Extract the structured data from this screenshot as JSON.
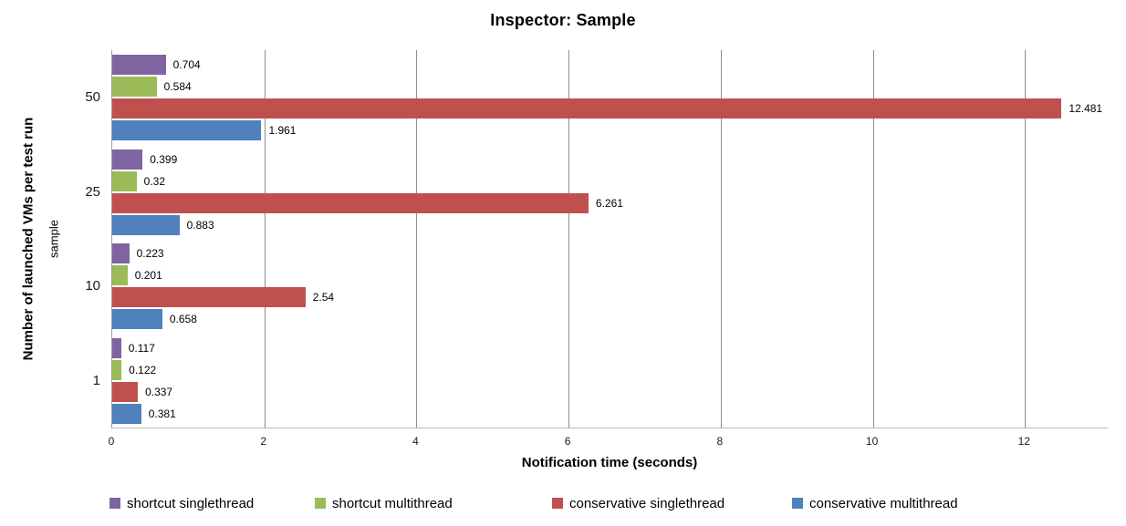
{
  "title": "Inspector: Sample",
  "chart_data": {
    "type": "bar",
    "orientation": "horizontal",
    "title": "Inspector: Sample",
    "xlabel": "Notification time (seconds)",
    "ylabel": "Number of launched VMs per test run",
    "ylabel_inner": "sample",
    "categories": [
      "50",
      "25",
      "10",
      "1"
    ],
    "series": [
      {
        "name": "shortcut singlethread",
        "color": "#8064A2",
        "values": [
          0.704,
          0.399,
          0.223,
          0.117
        ],
        "labels": [
          "0.704",
          "0.399",
          "0.223",
          "0.117"
        ]
      },
      {
        "name": "shortcut multithread",
        "color": "#9BBB59",
        "values": [
          0.584,
          0.32,
          0.201,
          0.122
        ],
        "labels": [
          "0.584",
          "0.32",
          "0.201",
          "0.122"
        ]
      },
      {
        "name": "conservative singlethread",
        "color": "#C0504D",
        "values": [
          12.481,
          6.261,
          2.54,
          0.337
        ],
        "labels": [
          "12.481",
          "6.261",
          "2.54",
          "0.337"
        ]
      },
      {
        "name": "conservative multithread",
        "color": "#4F81BD",
        "values": [
          1.961,
          0.883,
          0.658,
          0.381
        ],
        "labels": [
          "1.961",
          "0.883",
          "0.658",
          "0.381"
        ]
      }
    ],
    "xticks": [
      "0",
      "2",
      "4",
      "6",
      "8",
      "10",
      "12"
    ],
    "xtick_values": [
      0,
      2,
      4,
      6,
      8,
      10,
      12
    ],
    "xlim": [
      0,
      13.1
    ],
    "grid": "vertical-gridlines",
    "legend_position": "bottom"
  },
  "colors": {
    "gridline": "#8c8c8c",
    "axis_line": "#9d9d9d",
    "background": "#ffffff",
    "text": "#000000"
  }
}
